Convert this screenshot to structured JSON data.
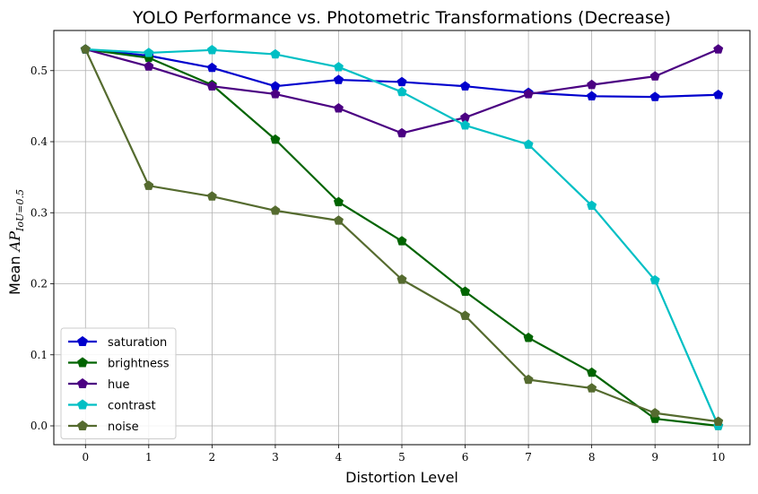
{
  "chart_data": {
    "type": "line",
    "title": "YOLO Performance vs. Photometric Transformations (Decrease)",
    "xlabel": "Distortion Level",
    "ylabel_prefix": "Mean ",
    "ylabel_ap": "AP",
    "ylabel_sub": "IoU=0.5",
    "x": [
      0,
      1,
      2,
      3,
      4,
      5,
      6,
      7,
      8,
      9,
      10
    ],
    "xlim": [
      -0.5,
      10.5
    ],
    "ylim": [
      -0.0265,
      0.5565
    ],
    "yticks": [
      0.0,
      0.1,
      0.2,
      0.3,
      0.4,
      0.5
    ],
    "ytick_labels": [
      "0.0",
      "0.1",
      "0.2",
      "0.3",
      "0.4",
      "0.5"
    ],
    "xtick_labels": [
      "0",
      "1",
      "2",
      "3",
      "4",
      "5",
      "6",
      "7",
      "8",
      "9",
      "10"
    ],
    "grid": true,
    "legend_position": "lower-left",
    "marker": "pentagon",
    "series": [
      {
        "name": "saturation",
        "color": "#0000cd",
        "values": [
          0.53,
          0.521,
          0.504,
          0.478,
          0.487,
          0.484,
          0.478,
          0.469,
          0.464,
          0.463,
          0.466
        ]
      },
      {
        "name": "brightness",
        "color": "#006400",
        "values": [
          0.53,
          0.518,
          0.48,
          0.403,
          0.315,
          0.26,
          0.189,
          0.124,
          0.075,
          0.01,
          0.0
        ]
      },
      {
        "name": "hue",
        "color": "#4b0082",
        "values": [
          0.53,
          0.506,
          0.478,
          0.467,
          0.447,
          0.412,
          0.434,
          0.467,
          0.48,
          0.492,
          0.53
        ]
      },
      {
        "name": "contrast",
        "color": "#00bfc4",
        "values": [
          0.53,
          0.525,
          0.529,
          0.523,
          0.505,
          0.47,
          0.423,
          0.396,
          0.31,
          0.205,
          0.0
        ]
      },
      {
        "name": "noise",
        "color": "#556b2f",
        "values": [
          0.53,
          0.338,
          0.323,
          0.303,
          0.289,
          0.206,
          0.155,
          0.065,
          0.053,
          0.018,
          0.006
        ]
      }
    ]
  }
}
